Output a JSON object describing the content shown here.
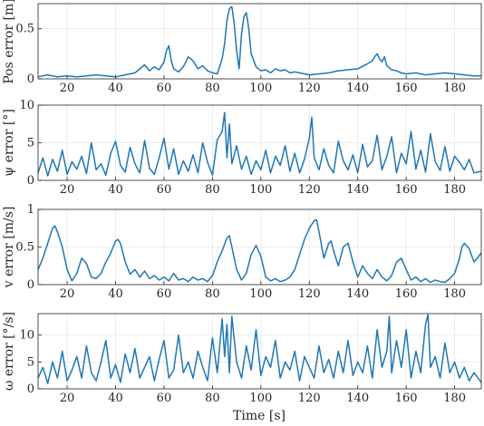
{
  "colors": {
    "series": "#1f77b4",
    "axes": "#262626",
    "grid": "#e6e6e6"
  },
  "chart_data": [
    {
      "type": "line",
      "ylabel": "Pos error [m]",
      "xlim": [
        8,
        191
      ],
      "ylim": [
        0,
        0.75
      ],
      "xticks": [
        20,
        40,
        60,
        80,
        100,
        120,
        140,
        160,
        180
      ],
      "yticks": [
        0,
        0.5
      ],
      "grid": true,
      "series": [
        {
          "x": [
            8,
            12,
            16,
            20,
            24,
            28,
            32,
            36,
            40,
            44,
            48,
            50,
            52,
            54,
            56,
            58,
            60,
            61,
            62,
            63,
            64,
            66,
            68,
            70,
            72,
            74,
            76,
            78,
            80,
            82,
            84,
            85,
            86,
            87,
            88,
            89,
            90,
            91,
            92,
            93,
            94,
            95,
            96,
            98,
            100,
            102,
            104,
            106,
            108,
            110,
            112,
            114,
            116,
            118,
            120,
            124,
            128,
            132,
            136,
            140,
            144,
            146,
            147,
            148,
            149,
            150,
            151,
            152,
            154,
            156,
            158,
            160,
            164,
            168,
            172,
            176,
            180,
            184,
            188,
            191
          ],
          "y": [
            0.02,
            0.04,
            0.02,
            0.03,
            0.02,
            0.03,
            0.04,
            0.03,
            0.02,
            0.04,
            0.06,
            0.1,
            0.14,
            0.08,
            0.12,
            0.09,
            0.17,
            0.28,
            0.33,
            0.18,
            0.1,
            0.07,
            0.12,
            0.22,
            0.18,
            0.1,
            0.13,
            0.08,
            0.06,
            0.05,
            0.2,
            0.35,
            0.58,
            0.7,
            0.72,
            0.55,
            0.28,
            0.1,
            0.45,
            0.62,
            0.66,
            0.5,
            0.25,
            0.12,
            0.08,
            0.09,
            0.06,
            0.1,
            0.08,
            0.09,
            0.06,
            0.07,
            0.06,
            0.05,
            0.04,
            0.05,
            0.06,
            0.08,
            0.09,
            0.1,
            0.15,
            0.18,
            0.22,
            0.25,
            0.2,
            0.17,
            0.22,
            0.13,
            0.09,
            0.08,
            0.06,
            0.05,
            0.06,
            0.04,
            0.05,
            0.06,
            0.05,
            0.04,
            0.03,
            0.03
          ]
        }
      ]
    },
    {
      "type": "line",
      "ylabel": "ψ error [°]",
      "xlim": [
        8,
        191
      ],
      "ylim": [
        0,
        10
      ],
      "xticks": [
        20,
        40,
        60,
        80,
        100,
        120,
        140,
        160,
        180
      ],
      "yticks": [
        0,
        5,
        10
      ],
      "grid": true,
      "series": [
        {
          "x": [
            8,
            10,
            12,
            14,
            16,
            18,
            20,
            22,
            24,
            26,
            28,
            30,
            32,
            34,
            36,
            38,
            40,
            42,
            44,
            46,
            48,
            50,
            52,
            54,
            56,
            58,
            60,
            62,
            64,
            66,
            68,
            70,
            72,
            74,
            76,
            78,
            80,
            82,
            84,
            85,
            86,
            87,
            88,
            90,
            92,
            94,
            96,
            98,
            100,
            102,
            104,
            106,
            108,
            110,
            112,
            114,
            116,
            118,
            120,
            121,
            122,
            124,
            126,
            128,
            130,
            132,
            134,
            136,
            138,
            140,
            142,
            144,
            146,
            148,
            150,
            152,
            154,
            156,
            158,
            160,
            162,
            164,
            166,
            168,
            170,
            172,
            174,
            176,
            178,
            180,
            182,
            184,
            186,
            188,
            191
          ],
          "y": [
            1.0,
            3.0,
            0.6,
            2.8,
            1.2,
            4.0,
            0.8,
            2.5,
            1.5,
            3.2,
            0.9,
            5.0,
            1.4,
            2.2,
            0.7,
            3.6,
            5.2,
            2.0,
            1.1,
            4.4,
            2.2,
            1.0,
            5.3,
            1.6,
            0.8,
            3.0,
            5.6,
            1.5,
            4.2,
            0.8,
            2.6,
            1.2,
            3.4,
            1.0,
            5.0,
            2.4,
            0.7,
            5.4,
            6.5,
            9.0,
            3.0,
            7.5,
            2.2,
            4.6,
            1.5,
            3.2,
            0.8,
            2.6,
            1.4,
            4.0,
            1.0,
            3.2,
            2.0,
            4.6,
            1.2,
            3.6,
            1.0,
            2.8,
            5.6,
            8.4,
            3.0,
            1.4,
            4.2,
            2.0,
            1.0,
            5.2,
            2.6,
            1.4,
            3.4,
            1.0,
            4.8,
            1.8,
            2.6,
            6.0,
            1.4,
            3.2,
            5.8,
            1.0,
            3.6,
            2.2,
            6.5,
            1.5,
            4.0,
            1.1,
            6.2,
            2.5,
            1.3,
            4.5,
            1.2,
            3.2,
            2.4,
            1.4,
            2.8,
            1.0,
            1.2
          ]
        }
      ]
    },
    {
      "type": "line",
      "ylabel": "v error [m/s]",
      "xlim": [
        8,
        191
      ],
      "ylim": [
        0,
        1
      ],
      "xticks": [
        20,
        40,
        60,
        80,
        100,
        120,
        140,
        160,
        180
      ],
      "yticks": [
        0,
        0.5,
        1
      ],
      "grid": true,
      "series": [
        {
          "x": [
            8,
            10,
            12,
            14,
            15,
            16,
            18,
            20,
            22,
            24,
            26,
            28,
            30,
            32,
            34,
            36,
            38,
            40,
            41,
            42,
            44,
            46,
            48,
            50,
            52,
            54,
            56,
            58,
            60,
            62,
            64,
            66,
            68,
            70,
            72,
            74,
            76,
            78,
            80,
            82,
            84,
            86,
            87,
            88,
            90,
            92,
            94,
            96,
            98,
            100,
            102,
            104,
            106,
            108,
            110,
            112,
            114,
            116,
            118,
            120,
            122,
            123,
            124,
            126,
            128,
            129,
            130,
            132,
            134,
            136,
            138,
            140,
            142,
            144,
            146,
            148,
            150,
            152,
            154,
            156,
            158,
            160,
            162,
            164,
            166,
            168,
            170,
            172,
            174,
            176,
            178,
            180,
            182,
            183,
            184,
            186,
            188,
            191
          ],
          "y": [
            0.2,
            0.35,
            0.55,
            0.75,
            0.78,
            0.7,
            0.5,
            0.2,
            0.05,
            0.15,
            0.35,
            0.28,
            0.1,
            0.08,
            0.15,
            0.3,
            0.42,
            0.58,
            0.6,
            0.55,
            0.3,
            0.14,
            0.2,
            0.1,
            0.18,
            0.08,
            0.12,
            0.06,
            0.1,
            0.05,
            0.15,
            0.06,
            0.08,
            0.04,
            0.1,
            0.06,
            0.08,
            0.04,
            0.12,
            0.3,
            0.45,
            0.62,
            0.65,
            0.5,
            0.2,
            0.06,
            0.15,
            0.4,
            0.52,
            0.38,
            0.1,
            0.05,
            0.08,
            0.04,
            0.06,
            0.1,
            0.2,
            0.4,
            0.6,
            0.75,
            0.85,
            0.86,
            0.7,
            0.35,
            0.55,
            0.58,
            0.45,
            0.25,
            0.5,
            0.55,
            0.3,
            0.1,
            0.25,
            0.15,
            0.08,
            0.2,
            0.1,
            0.05,
            0.12,
            0.3,
            0.35,
            0.2,
            0.06,
            0.1,
            0.04,
            0.08,
            0.03,
            0.06,
            0.04,
            0.03,
            0.08,
            0.15,
            0.35,
            0.5,
            0.55,
            0.48,
            0.3,
            0.42
          ]
        }
      ]
    },
    {
      "type": "line",
      "ylabel": "ω error [°/s]",
      "xlim": [
        8,
        191
      ],
      "ylim": [
        0,
        14
      ],
      "xticks": [
        20,
        40,
        60,
        80,
        100,
        120,
        140,
        160,
        180
      ],
      "yticks": [
        0,
        5,
        10
      ],
      "grid": true,
      "series": [
        {
          "x": [
            8,
            10,
            12,
            14,
            16,
            18,
            20,
            22,
            24,
            26,
            28,
            30,
            32,
            34,
            36,
            38,
            40,
            42,
            44,
            46,
            48,
            50,
            52,
            54,
            56,
            58,
            60,
            62,
            64,
            66,
            68,
            70,
            72,
            74,
            76,
            78,
            80,
            82,
            84,
            85,
            86,
            87,
            88,
            90,
            92,
            94,
            96,
            98,
            100,
            102,
            104,
            106,
            108,
            110,
            112,
            114,
            116,
            118,
            120,
            122,
            124,
            126,
            128,
            130,
            132,
            134,
            136,
            138,
            140,
            142,
            144,
            146,
            148,
            150,
            152,
            153,
            154,
            156,
            158,
            160,
            162,
            164,
            166,
            168,
            169,
            170,
            172,
            174,
            176,
            178,
            180,
            182,
            184,
            186,
            188,
            191
          ],
          "y": [
            2.0,
            4.0,
            1.0,
            5.0,
            2.0,
            7.0,
            1.5,
            3.5,
            6.0,
            2.0,
            8.0,
            3.0,
            1.5,
            5.0,
            9.0,
            2.0,
            4.5,
            1.2,
            6.5,
            3.0,
            7.5,
            2.0,
            4.0,
            6.0,
            1.5,
            5.5,
            9.0,
            2.0,
            3.5,
            10.0,
            3.0,
            5.0,
            2.0,
            7.0,
            4.0,
            1.5,
            9.5,
            3.0,
            13.0,
            6.0,
            12.0,
            3.0,
            13.5,
            5.0,
            2.0,
            8.0,
            3.5,
            11.0,
            2.5,
            6.0,
            4.0,
            9.0,
            2.0,
            5.0,
            3.5,
            7.0,
            1.5,
            6.0,
            4.0,
            2.0,
            8.0,
            3.0,
            5.5,
            2.0,
            7.0,
            3.0,
            9.0,
            2.5,
            5.0,
            3.0,
            8.0,
            2.0,
            11.0,
            4.0,
            7.0,
            13.5,
            3.0,
            9.0,
            4.0,
            11.0,
            2.0,
            7.0,
            3.0,
            12.0,
            13.8,
            4.0,
            6.0,
            2.0,
            8.5,
            3.0,
            5.0,
            2.0,
            4.0,
            1.5,
            3.0,
            1.2
          ]
        }
      ]
    }
  ],
  "xlabel": "Time [s]"
}
